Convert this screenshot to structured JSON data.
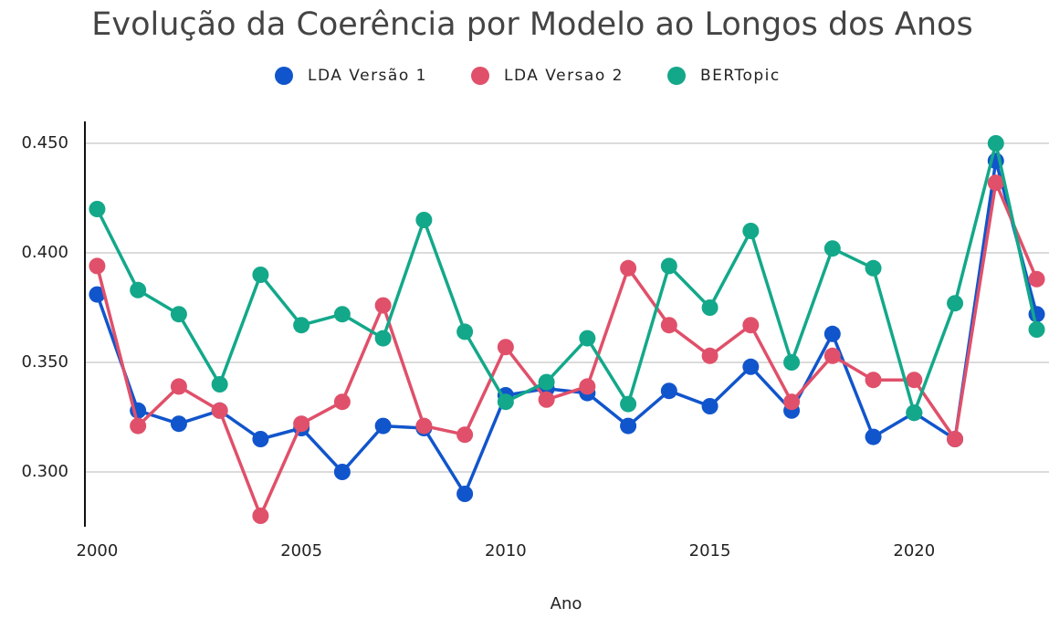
{
  "chart_data": {
    "type": "line",
    "title": "Evolução da Coerência por Modelo ao Longos dos Anos",
    "x_label": "Ano",
    "x": [
      2000,
      2001,
      2002,
      2003,
      2004,
      2005,
      2006,
      2007,
      2008,
      2009,
      2010,
      2011,
      2012,
      2013,
      2014,
      2015,
      2016,
      2017,
      2018,
      2019,
      2020,
      2021,
      2022,
      2023
    ],
    "series": [
      {
        "name": "LDA Versão 1",
        "color": "#1155cc",
        "values": [
          0.381,
          0.328,
          0.322,
          0.328,
          0.315,
          0.32,
          0.3,
          0.321,
          0.32,
          0.29,
          0.335,
          0.338,
          0.336,
          0.321,
          0.337,
          0.33,
          0.348,
          0.328,
          0.363,
          0.316,
          0.327,
          0.315,
          0.442,
          0.372
        ]
      },
      {
        "name": "LDA Versao 2",
        "color": "#e0506a",
        "values": [
          0.394,
          0.321,
          0.339,
          0.328,
          0.28,
          0.322,
          0.332,
          0.376,
          0.321,
          0.317,
          0.357,
          0.333,
          0.339,
          0.393,
          0.367,
          0.353,
          0.367,
          0.332,
          0.353,
          0.342,
          0.342,
          0.315,
          0.432,
          0.388
        ]
      },
      {
        "name": "BERTopic",
        "color": "#13a88a",
        "values": [
          0.42,
          0.383,
          0.372,
          0.34,
          0.39,
          0.367,
          0.372,
          0.361,
          0.415,
          0.364,
          0.332,
          0.341,
          0.361,
          0.331,
          0.394,
          0.375,
          0.41,
          0.35,
          0.402,
          0.393,
          0.327,
          0.377,
          0.45,
          0.365
        ]
      }
    ],
    "xlim": [
      1999.7,
      2023.1
    ],
    "xticks": [
      2000,
      2005,
      2010,
      2015,
      2020
    ],
    "ylim": [
      0.275,
      0.46
    ],
    "yticks": [
      {
        "value": 0.3,
        "label": "0.300"
      },
      {
        "value": 0.35,
        "label": "0.350"
      },
      {
        "value": 0.4,
        "label": "0.400"
      },
      {
        "value": 0.45,
        "label": "0.450"
      }
    ],
    "grid": true,
    "legend": "top"
  }
}
